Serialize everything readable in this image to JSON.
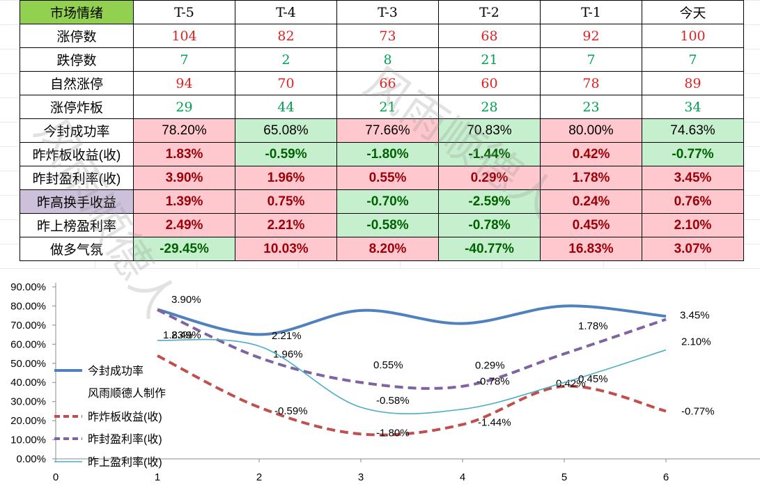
{
  "table": {
    "title": "市场情绪",
    "columns": [
      "T-5",
      "T-4",
      "T-3",
      "T-2",
      "T-1",
      "今天"
    ],
    "rows": [
      {
        "label": "涨停数",
        "values": [
          "104",
          "82",
          "73",
          "68",
          "92",
          "100"
        ]
      },
      {
        "label": "跌停数",
        "values": [
          "7",
          "2",
          "8",
          "21",
          "7",
          "7"
        ]
      },
      {
        "label": "自然涨停",
        "values": [
          "94",
          "70",
          "66",
          "60",
          "78",
          "89"
        ]
      },
      {
        "label": "涨停炸板",
        "values": [
          "29",
          "44",
          "21",
          "28",
          "23",
          "34"
        ]
      },
      {
        "label": "今封成功率",
        "values": [
          "78.20%",
          "65.08%",
          "77.66%",
          "70.83%",
          "80.00%",
          "74.63%"
        ]
      },
      {
        "label": "昨炸板收益(收)",
        "values": [
          "1.83%",
          "-0.59%",
          "-1.80%",
          "-1.44%",
          "0.42%",
          "-0.77%"
        ]
      },
      {
        "label": "昨封盈利率(收)",
        "values": [
          "3.90%",
          "1.96%",
          "0.55%",
          "0.29%",
          "1.78%",
          "3.45%"
        ]
      },
      {
        "label": "昨高换手收益",
        "values": [
          "1.39%",
          "0.75%",
          "-0.70%",
          "-2.59%",
          "0.24%",
          "0.76%"
        ]
      },
      {
        "label": "昨上榜盈利率",
        "values": [
          "2.49%",
          "2.21%",
          "-0.58%",
          "-0.78%",
          "0.45%",
          "2.10%"
        ]
      },
      {
        "label": "做多气氛",
        "values": [
          "-29.45%",
          "10.03%",
          "8.20%",
          "-40.77%",
          "16.83%",
          "3.07%"
        ]
      }
    ]
  },
  "watermark": [
    "风雨顺德人",
    "风雨顺德人"
  ],
  "colors": {
    "header_green": "#92d050",
    "pos_fill": "#ffc7ce",
    "neg_fill": "#c6efce",
    "red_text": "#9c0006",
    "green_text": "#006100",
    "series1": "#4f81bd",
    "series2": "#c0504d",
    "series3": "#8064a2",
    "series4": "#4bacc6"
  },
  "chart_data": {
    "type": "line",
    "xlim": [
      0,
      7
    ],
    "ylim": [
      0,
      90
    ],
    "x_ticks": [
      "0",
      "1",
      "2",
      "3",
      "4",
      "5",
      "6"
    ],
    "y_ticks": [
      "0.00%",
      "10.00%",
      "20.00%",
      "30.00%",
      "40.00%",
      "50.00%",
      "60.00%",
      "70.00%",
      "80.00%",
      "90.00%"
    ],
    "legend": [
      "今封成功率",
      "风雨顺德人制作",
      "昨炸板收益(收)",
      "昨封盈利率(收)",
      "昨上盈利率(收)"
    ],
    "series": [
      {
        "name": "今封成功率",
        "x": [
          1,
          2,
          3,
          4,
          5,
          6
        ],
        "y": [
          78.2,
          65.08,
          77.66,
          70.83,
          80.0,
          74.63
        ],
        "style": "solid"
      },
      {
        "name": "昨炸板收益(收)",
        "x": [
          1,
          2,
          3,
          4,
          5,
          6
        ],
        "y": [
          54,
          27,
          13,
          18,
          38,
          25
        ],
        "style": "dash",
        "labels": [
          "1.83%",
          "-0.59%",
          "-1.80%",
          "-1.44%",
          "0.42%",
          "-0.77%"
        ]
      },
      {
        "name": "昨封盈利率(收)",
        "x": [
          1,
          2,
          3,
          4,
          5,
          6
        ],
        "y": [
          78,
          53,
          40,
          38,
          55,
          73
        ],
        "style": "dash",
        "labels": [
          "3.90%",
          "1.96%",
          "0.55%",
          "0.29%",
          "1.78%",
          "3.45%"
        ]
      },
      {
        "name": "昨上盈利率(收)",
        "x": [
          1,
          2,
          3,
          4,
          5,
          6
        ],
        "y": [
          62,
          59,
          27,
          26,
          40,
          57
        ],
        "style": "thin",
        "labels": [
          "2.49%",
          "2.21%",
          "-0.58%",
          "-0.78%",
          "0.45%",
          "2.10%"
        ]
      }
    ]
  }
}
